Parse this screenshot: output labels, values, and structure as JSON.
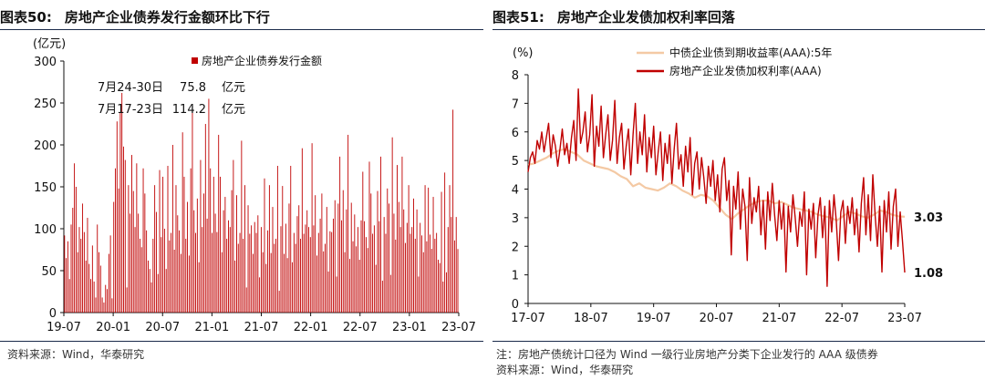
{
  "colors": {
    "primary": "#c00000",
    "secondary": "#f4c9a4",
    "secondary_label": "#f0b27a",
    "axis": "#111111",
    "rule": "#1a2a4a"
  },
  "left": {
    "title_num": "图表50:",
    "title_text": "房地产企业债券发行金额环比下行",
    "source": "资料来源：Wind，华泰研究"
  },
  "right": {
    "title_num": "图表51:",
    "title_text": "房地产企业发债加权利率回落",
    "note": "注：房地产债统计口径为 Wind 一级行业房地产分类下企业发行的 AAA 级债券",
    "source": "资料来源：Wind，华泰研究"
  },
  "chart_data": [
    {
      "type": "bar",
      "ylabel": "(亿元)",
      "ylim": [
        0,
        300
      ],
      "yticks": [
        "0",
        "50",
        "100",
        "150",
        "200",
        "250",
        "300"
      ],
      "xtick_labels": [
        "19-07",
        "20-01",
        "20-07",
        "21-01",
        "21-07",
        "22-01",
        "22-07",
        "23-01",
        "23-07"
      ],
      "legend": [
        "房地产企业债券发行金额"
      ],
      "legend_position": "top-right",
      "annotations": [
        {
          "date": "7月24-30日",
          "value": "75.8",
          "unit": "亿元"
        },
        {
          "date": "7月17-23日",
          "value": "114.2",
          "unit": "亿元"
        }
      ],
      "series": [
        {
          "name": "房地产企业债券发行金额",
          "values": [
            92,
            65,
            85,
            40,
            105,
            125,
            178,
            150,
            72,
            102,
            88,
            130,
            96,
            62,
            113,
            58,
            40,
            80,
            37,
            18,
            105,
            72,
            56,
            18,
            12,
            33,
            28,
            70,
            92,
            17,
            132,
            172,
            228,
            148,
            239,
            262,
            198,
            182,
            30,
            152,
            118,
            188,
            145,
            102,
            178,
            118,
            88,
            78,
            172,
            142,
            98,
            62,
            52,
            36,
            88,
            152,
            120,
            46,
            170,
            90,
            162,
            100,
            52,
            175,
            86,
            95,
            200,
            75,
            152,
            116,
            98,
            70,
            215,
            162,
            88,
            132,
            68,
            172,
            240,
            122,
            95,
            136,
            60,
            182,
            102,
            142,
            225,
            112,
            255,
            172,
            95,
            162,
            118,
            96,
            212,
            162,
            72,
            122,
            138,
            88,
            110,
            102,
            146,
            182,
            62,
            140,
            82,
            95,
            205,
            88,
            152,
            30,
            128,
            94,
            104,
            70,
            108,
            95,
            116,
            42,
            102,
            72,
            160,
            58,
            98,
            152,
            71,
            126,
            82,
            88,
            175,
            26,
            103,
            151,
            70,
            106,
            65,
            130,
            175,
            60,
            95,
            82,
            115,
            128,
            88,
            196,
            94,
            105,
            122,
            102,
            90,
            202,
            104,
            140,
            68,
            95,
            112,
            142,
            73,
            82,
            126,
            49,
            97,
            96,
            112,
            134,
            43,
            130,
            186,
            110,
            146,
            72,
            123,
            212,
            64,
            131,
            85,
            117,
            79,
            102,
            63,
            110,
            168,
            109,
            90,
            77,
            180,
            142,
            94,
            104,
            57,
            145,
            109,
            186,
            38,
            114,
            94,
            148,
            130,
            45,
            209,
            118,
            87,
            176,
            132,
            102,
            186,
            123,
            83,
            107,
            152,
            94,
            102,
            136,
            88,
            123,
            43,
            107,
            92,
            72,
            152,
            85,
            149,
            93,
            76,
            138,
            88,
            95,
            63,
            59,
            144,
            37,
            167,
            48,
            102,
            152,
            114,
            242,
            86,
            114,
            75.8
          ]
        }
      ]
    },
    {
      "type": "line",
      "ylabel": "(%)",
      "ylim": [
        0,
        8
      ],
      "yticks": [
        "0",
        "1",
        "2",
        "3",
        "4",
        "5",
        "6",
        "7",
        "8"
      ],
      "xtick_labels": [
        "17-07",
        "18-07",
        "19-07",
        "20-07",
        "21-07",
        "22-07",
        "23-07"
      ],
      "legend_position": "top-left",
      "end_labels": [
        "3.03",
        "1.08"
      ],
      "series": [
        {
          "name": "中债企业债到期收益率(AAA):5年",
          "values": [
            4.85,
            4.9,
            5.0,
            5.1,
            5.25,
            5.35,
            5.4,
            5.3,
            5.2,
            5.0,
            4.9,
            4.8,
            4.75,
            4.7,
            4.6,
            4.45,
            4.35,
            4.1,
            4.2,
            4.05,
            4.0,
            3.95,
            4.05,
            4.2,
            4.1,
            3.95,
            3.85,
            3.7,
            3.8,
            3.75,
            3.6,
            3.35,
            3.1,
            2.95,
            3.15,
            3.3,
            3.45,
            3.55,
            3.6,
            3.6,
            3.5,
            3.55,
            3.45,
            3.35,
            3.3,
            3.25,
            3.2,
            3.1,
            3.05,
            3.0,
            2.9,
            3.05,
            3.2,
            3.15,
            3.05,
            3.0,
            3.1,
            3.25,
            3.2,
            3.1,
            3.05,
            3.03
          ]
        },
        {
          "name": "房地产企业发债加权利率(AAA)",
          "values": [
            4.6,
            5.1,
            5.3,
            4.9,
            5.7,
            5.4,
            6.0,
            5.3,
            5.8,
            6.3,
            5.1,
            5.9,
            5.5,
            4.8,
            5.4,
            6.1,
            5.2,
            5.6,
            4.9,
            5.8,
            6.4,
            5.0,
            7.5,
            5.6,
            6.0,
            6.7,
            5.3,
            5.9,
            7.3,
            4.8,
            6.2,
            5.5,
            6.9,
            5.1,
            5.9,
            6.6,
            5.0,
            5.7,
            7.1,
            4.9,
            5.8,
            6.3,
            4.7,
            5.5,
            6.1,
            4.5,
            5.9,
            7.0,
            4.9,
            6.0,
            5.2,
            6.6,
            4.6,
            5.8,
            5.1,
            6.2,
            4.5,
            5.3,
            6.0,
            4.3,
            5.6,
            4.9,
            5.9,
            4.2,
            5.4,
            6.3,
            4.7,
            5.2,
            4.1,
            5.5,
            4.6,
            5.8,
            3.8,
            4.9,
            5.3,
            4.0,
            5.1,
            4.4,
            3.5,
            4.8,
            4.1,
            5.0,
            3.6,
            4.5,
            3.2,
            4.7,
            5.1,
            3.6,
            4.3,
            1.7,
            4.1,
            3.3,
            4.6,
            2.6,
            4.0,
            3.4,
            1.5,
            4.4,
            2.8,
            3.7,
            3.2,
            4.1,
            2.4,
            3.6,
            1.9,
            3.9,
            2.9,
            4.2,
            3.1,
            2.2,
            3.6,
            2.6,
            3.5,
            1.1,
            3.4,
            2.5,
            3.8,
            3.0,
            2.0,
            3.2,
            2.7,
            3.9,
            1.0,
            3.3,
            2.6,
            3.5,
            1.6,
            3.1,
            3.7,
            2.3,
            3.4,
            0.6,
            3.6,
            2.5,
            3.8,
            2.9,
            1.5,
            3.2,
            3.6,
            2.1,
            3.4,
            2.8,
            3.7,
            2.4,
            3.3,
            1.8,
            3.5,
            4.4,
            2.4,
            3.8,
            2.2,
            4.5,
            3.1,
            2.0,
            3.4,
            1.1,
            3.6,
            2.5,
            3.9,
            1.9,
            3.4,
            4.0,
            2.0,
            3.2,
            2.2,
            1.08
          ]
        }
      ]
    }
  ]
}
